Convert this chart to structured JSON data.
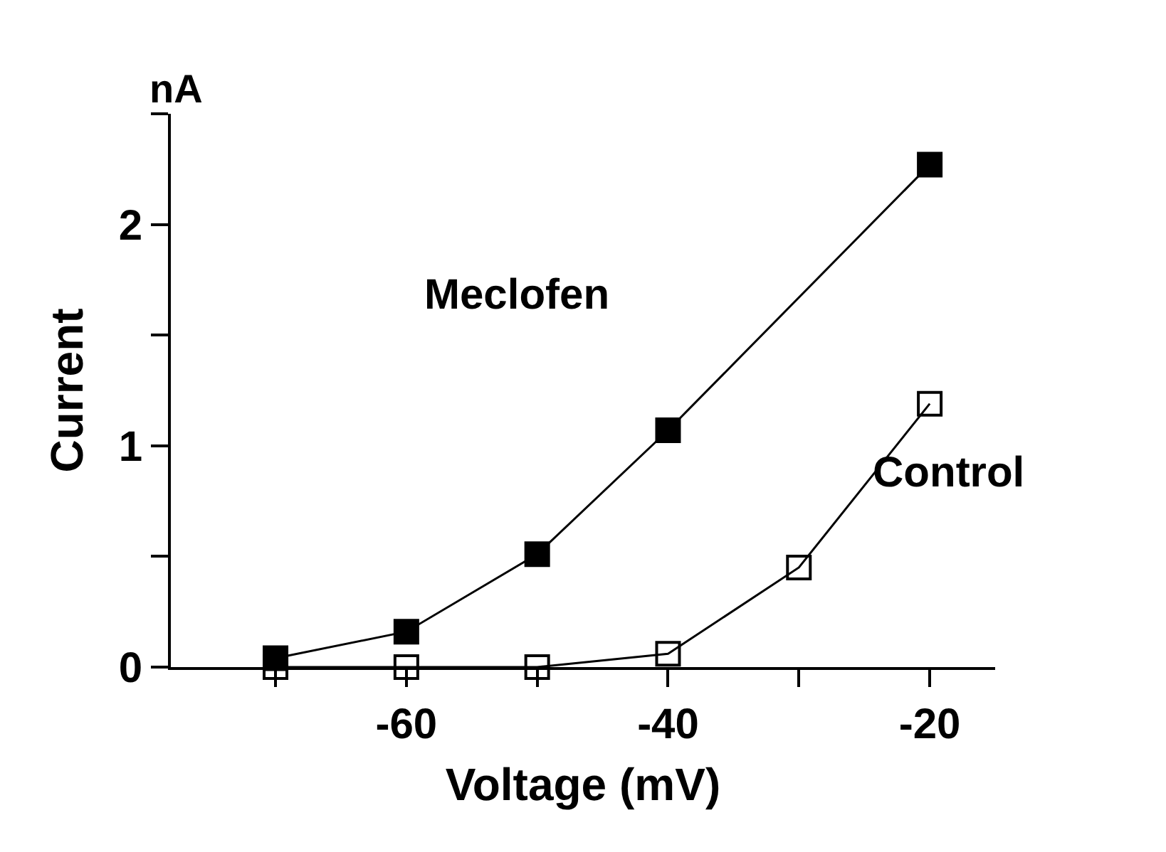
{
  "chart_data": {
    "type": "line",
    "xlabel": "Voltage (mV)",
    "ylabel": "Current",
    "annotations": [
      "nA"
    ],
    "x": [
      -70,
      -60,
      -50,
      -40,
      -30,
      -20
    ],
    "series": [
      {
        "name": "Meclofen",
        "color": "#000000",
        "values": [
          0.04,
          0.16,
          0.51,
          1.07,
          null,
          2.27
        ]
      },
      {
        "name": "Control",
        "color": "#000000",
        "values": [
          0.0,
          0.0,
          0.0,
          0.06,
          0.45,
          1.19
        ]
      }
    ],
    "xlim": [
      -78,
      -15
    ],
    "ylim": [
      0,
      2.5
    ],
    "xticks": [
      {
        "value": -70,
        "label": null
      },
      -60,
      {
        "value": -50,
        "label": null
      },
      -40,
      {
        "value": -30,
        "label": null
      },
      -20
    ],
    "yticks": [
      0,
      {
        "value": 0.5,
        "label": null
      },
      1,
      {
        "value": 1.5,
        "label": null
      },
      2,
      {
        "value": 2.5,
        "label": null
      }
    ],
    "marker": "square",
    "line_style": "solid",
    "legend": false
  }
}
